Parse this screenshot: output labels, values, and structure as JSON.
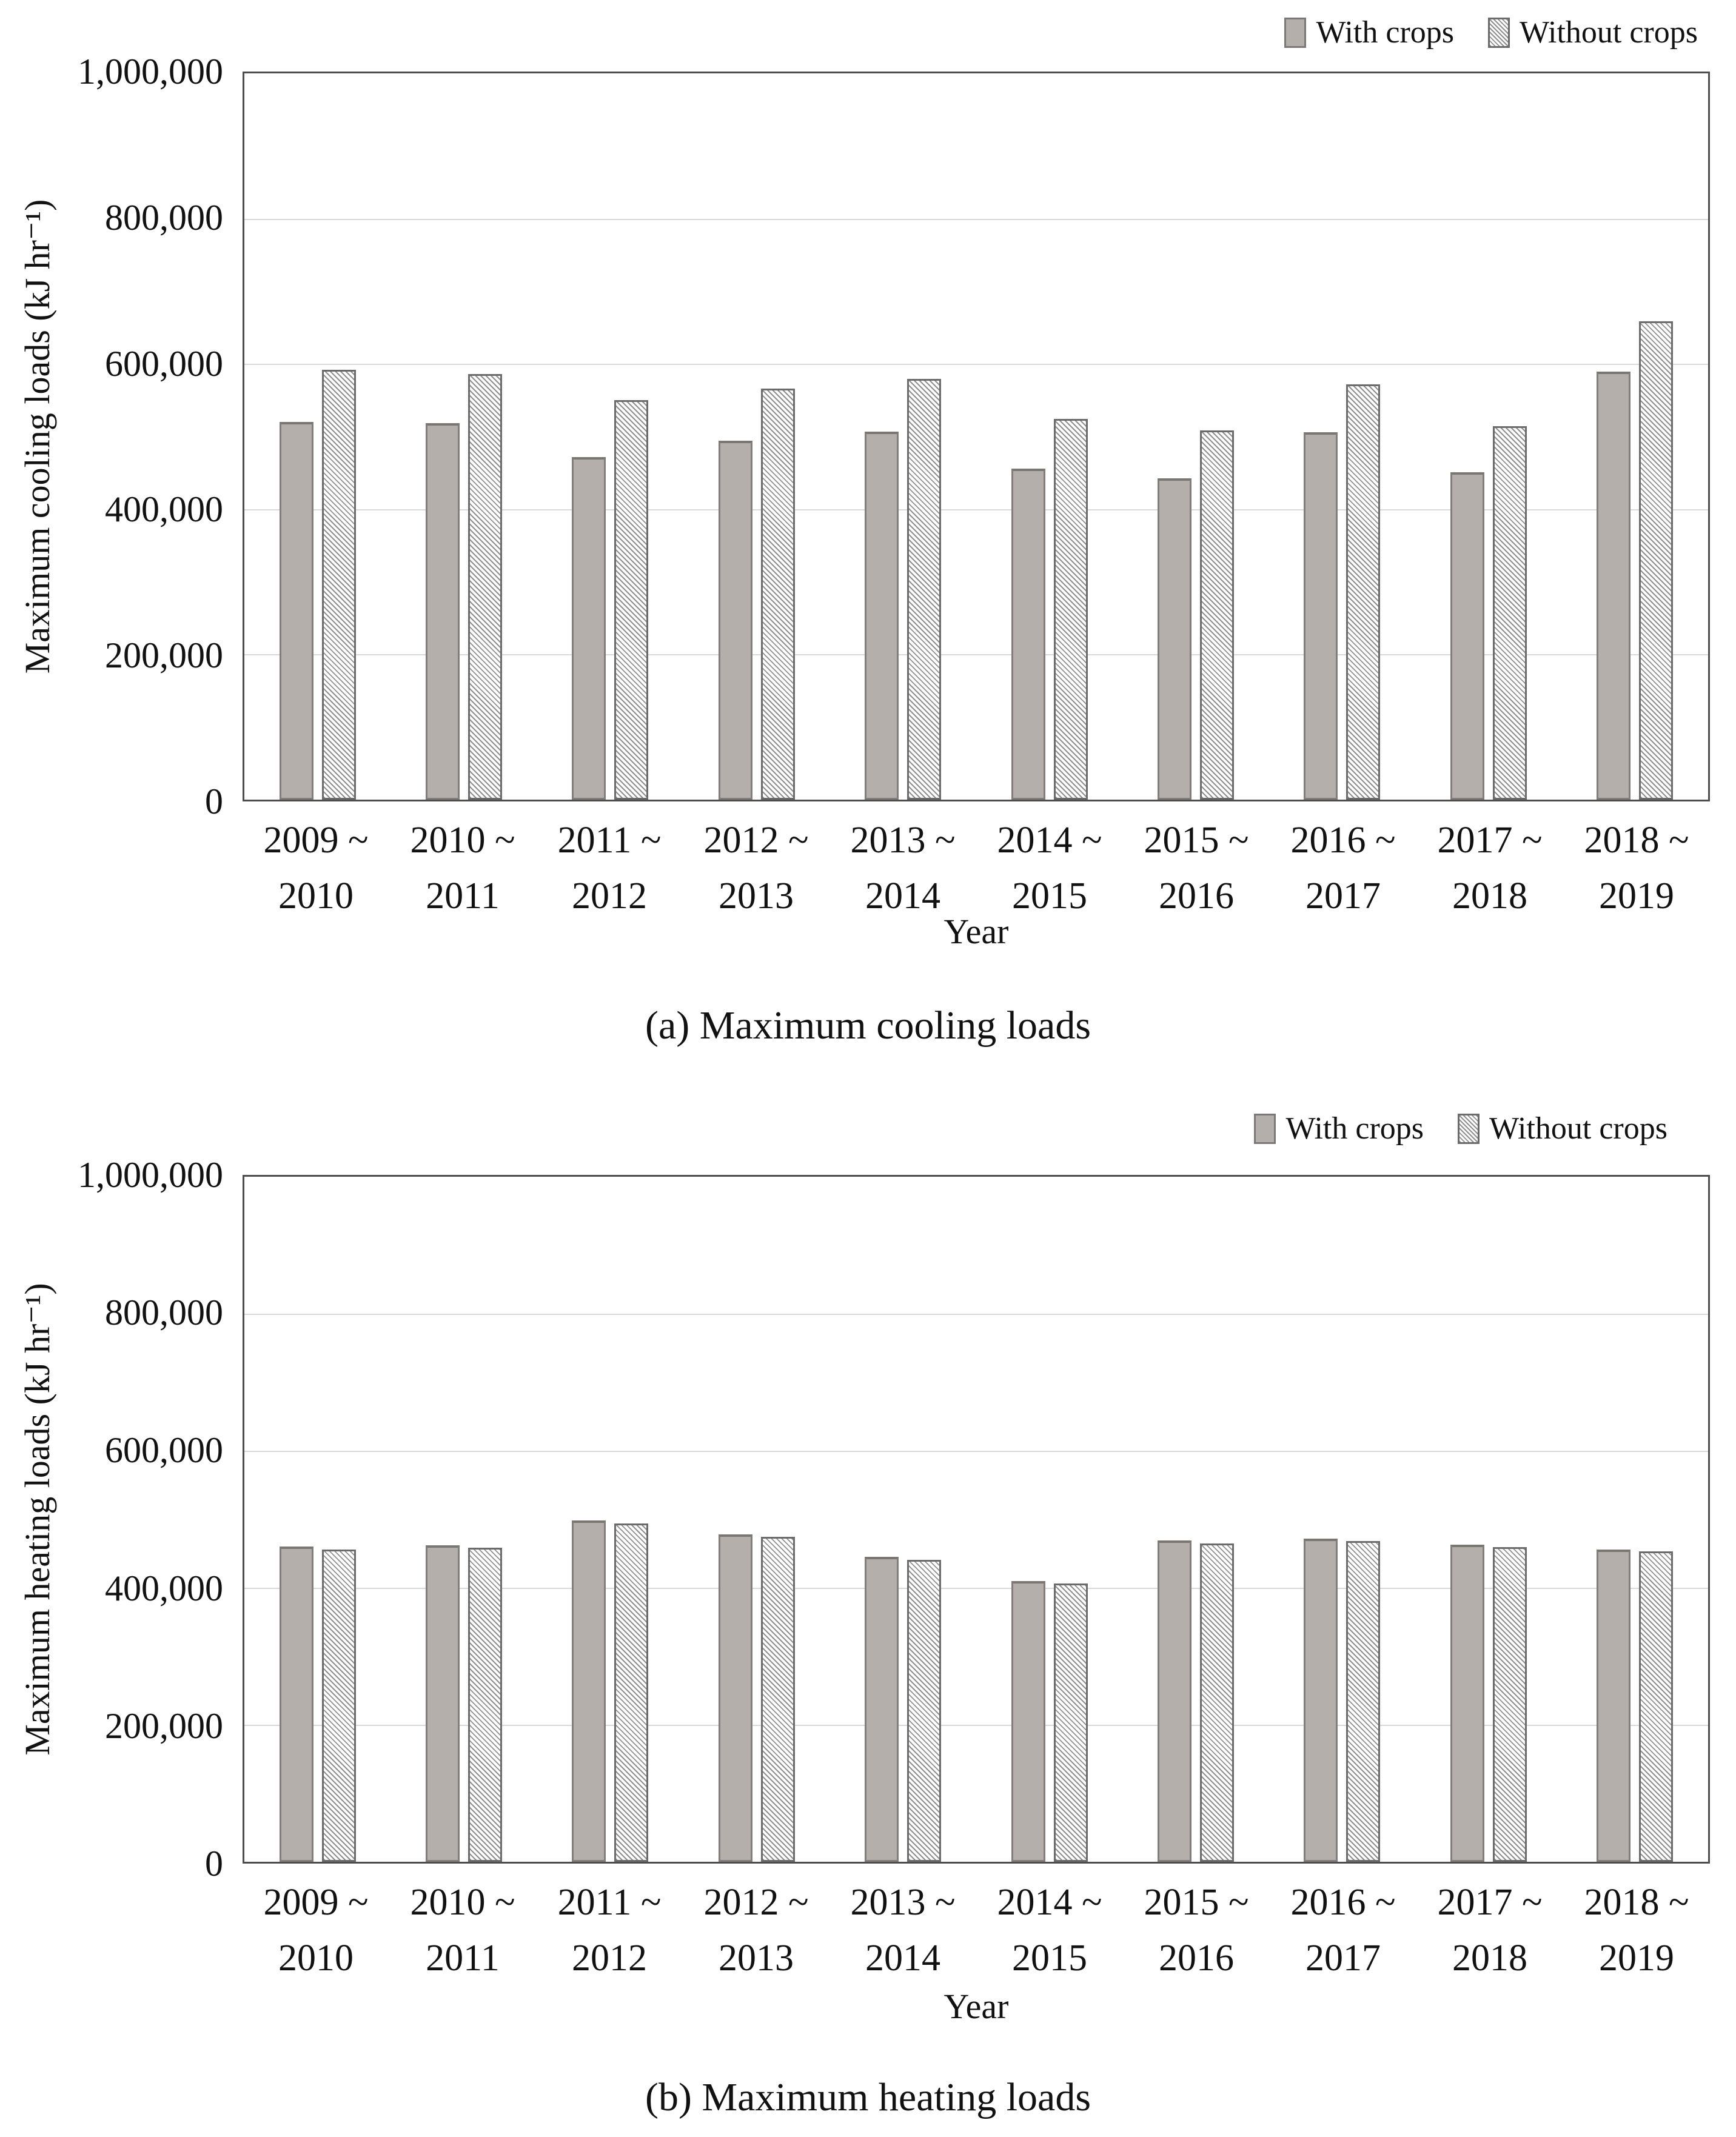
{
  "figure": {
    "background": "#ffffff",
    "description": "Two stacked grouped bar charts comparing greenhouse loads with and without crops by year"
  },
  "colors": {
    "with_crops_fill": "#b5afab",
    "with_crops_border": "#837e7c",
    "without_crops_hatch_line": "#8f8f8f",
    "without_crops_background": "#ffffff",
    "grid_line": "#d9d9d9",
    "axis_line": "#4d4d4d",
    "text": "#111111"
  },
  "chart_data": [
    {
      "type": "bar",
      "title": "(a) Maximum cooling loads",
      "xlabel": "Year",
      "ylabel": "Maximum cooling loads (kJ hr⁻¹)",
      "ylim": [
        0,
        1000000
      ],
      "ytick_step": 200000,
      "ytick_values": [
        0,
        200000,
        400000,
        600000,
        800000,
        1000000
      ],
      "ytick_labels": [
        "0",
        "200,000",
        "400,000",
        "600,000",
        "800,000",
        "1,000,000"
      ],
      "grid": "horizontal",
      "legend_position": "top-right",
      "categories": [
        {
          "line1": "2009 ~",
          "line2": "2010"
        },
        {
          "line1": "2010 ~",
          "line2": "2011"
        },
        {
          "line1": "2011 ~",
          "line2": "2012"
        },
        {
          "line1": "2012 ~",
          "line2": "2013"
        },
        {
          "line1": "2013 ~",
          "line2": "2014"
        },
        {
          "line1": "2014 ~",
          "line2": "2015"
        },
        {
          "line1": "2015 ~",
          "line2": "2016"
        },
        {
          "line1": "2016 ~",
          "line2": "2017"
        },
        {
          "line1": "2017 ~",
          "line2": "2018"
        },
        {
          "line1": "2018 ~",
          "line2": "2019"
        }
      ],
      "series": [
        {
          "name": "With crops",
          "style": "solid",
          "values": [
            520000,
            518000,
            472000,
            494000,
            507000,
            456000,
            442000,
            506000,
            451000,
            589000
          ]
        },
        {
          "name": "Without crops",
          "style": "hatch",
          "values": [
            592000,
            586000,
            550000,
            566000,
            579000,
            524000,
            508000,
            572000,
            514000,
            659000
          ]
        }
      ]
    },
    {
      "type": "bar",
      "title": "(b) Maximum heating loads",
      "xlabel": "Year",
      "ylabel": "Maximum heating loads (kJ hr⁻¹)",
      "ylim": [
        0,
        1000000
      ],
      "ytick_step": 200000,
      "ytick_values": [
        0,
        200000,
        400000,
        600000,
        800000,
        1000000
      ],
      "ytick_labels": [
        "0",
        "200,000",
        "400,000",
        "600,000",
        "800,000",
        "1,000,000"
      ],
      "grid": "horizontal",
      "legend_position": "top-right",
      "categories": [
        {
          "line1": "2009 ~",
          "line2": "2010"
        },
        {
          "line1": "2010 ~",
          "line2": "2011"
        },
        {
          "line1": "2011 ~",
          "line2": "2012"
        },
        {
          "line1": "2012 ~",
          "line2": "2013"
        },
        {
          "line1": "2013 ~",
          "line2": "2014"
        },
        {
          "line1": "2014 ~",
          "line2": "2015"
        },
        {
          "line1": "2015 ~",
          "line2": "2016"
        },
        {
          "line1": "2016 ~",
          "line2": "2017"
        },
        {
          "line1": "2017 ~",
          "line2": "2018"
        },
        {
          "line1": "2018 ~",
          "line2": "2019"
        }
      ],
      "series": [
        {
          "name": "With crops",
          "style": "solid",
          "values": [
            460000,
            462000,
            498000,
            478000,
            445000,
            410000,
            469000,
            472000,
            463000,
            456000
          ]
        },
        {
          "name": "Without crops",
          "style": "hatch",
          "values": [
            456000,
            458000,
            494000,
            474000,
            441000,
            406000,
            465000,
            468000,
            459000,
            453000
          ]
        }
      ]
    }
  ]
}
